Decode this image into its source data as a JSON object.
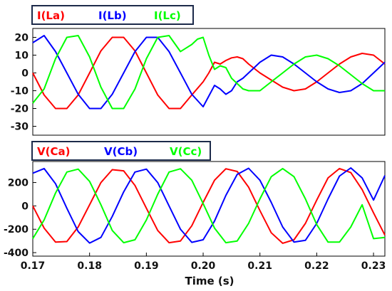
{
  "chart_data": [
    {
      "type": "line",
      "title": "",
      "xlabel": "",
      "ylabel": "",
      "xlim": [
        0.17,
        0.232
      ],
      "ylim": [
        -35,
        25
      ],
      "yticks": [
        20,
        10,
        0,
        -10,
        -20,
        -30
      ],
      "grid": false,
      "legend_position": "top-left",
      "series": [
        {
          "name": "I(La)",
          "color": "#ff0000",
          "x": [
            0.17,
            0.172,
            0.174,
            0.176,
            0.178,
            0.18,
            0.182,
            0.184,
            0.186,
            0.188,
            0.19,
            0.192,
            0.194,
            0.196,
            0.198,
            0.2,
            0.201,
            0.202,
            0.203,
            0.204,
            0.205,
            0.206,
            0.207,
            0.208,
            0.21,
            0.212,
            0.214,
            0.216,
            0.218,
            0.22,
            0.222,
            0.224,
            0.226,
            0.228,
            0.23,
            0.232
          ],
          "y": [
            0,
            -12.4,
            -20,
            -20,
            -12.4,
            0,
            12.4,
            20,
            20,
            12.4,
            0,
            -12.4,
            -20,
            -20,
            -12.4,
            -5,
            0,
            6,
            5,
            7,
            8.5,
            9,
            8,
            5,
            0,
            -4,
            -8,
            -10,
            -9,
            -5,
            0,
            5,
            9,
            11,
            10,
            5
          ]
        },
        {
          "name": "I(Lb)",
          "color": "#0000ff",
          "x": [
            0.17,
            0.172,
            0.174,
            0.176,
            0.178,
            0.18,
            0.182,
            0.184,
            0.186,
            0.188,
            0.19,
            0.192,
            0.194,
            0.196,
            0.198,
            0.2,
            0.201,
            0.202,
            0.203,
            0.204,
            0.205,
            0.206,
            0.207,
            0.208,
            0.21,
            0.212,
            0.214,
            0.216,
            0.218,
            0.22,
            0.222,
            0.224,
            0.226,
            0.228,
            0.23,
            0.232
          ],
          "y": [
            17,
            21,
            12,
            0,
            -12,
            -20,
            -20,
            -12,
            0,
            12,
            20,
            20,
            12,
            0,
            -12,
            -19,
            -13,
            -7,
            -9,
            -12,
            -10,
            -5,
            -3,
            0,
            6,
            10,
            9,
            5,
            0,
            -5,
            -9,
            -11,
            -10,
            -6,
            0,
            6
          ]
        },
        {
          "name": "I(Lc)",
          "color": "#00ff00",
          "x": [
            0.17,
            0.172,
            0.174,
            0.176,
            0.178,
            0.18,
            0.182,
            0.184,
            0.186,
            0.188,
            0.19,
            0.192,
            0.194,
            0.196,
            0.198,
            0.199,
            0.2,
            0.201,
            0.202,
            0.203,
            0.204,
            0.205,
            0.206,
            0.207,
            0.208,
            0.21,
            0.212,
            0.214,
            0.216,
            0.218,
            0.22,
            0.222,
            0.224,
            0.226,
            0.228,
            0.23,
            0.232
          ],
          "y": [
            -17,
            -9,
            8,
            20,
            21,
            9,
            -8,
            -20,
            -20,
            -9,
            8,
            20,
            21,
            12,
            16,
            19,
            20,
            10,
            2,
            4,
            3,
            -3,
            -6,
            -9,
            -10,
            -10,
            -5,
            0,
            5,
            9,
            10,
            8,
            4,
            -1,
            -6,
            -10,
            -10
          ]
        }
      ]
    },
    {
      "type": "line",
      "title": "",
      "xlabel": "Time (s)",
      "ylabel": "",
      "xlim": [
        0.17,
        0.232
      ],
      "ylim": [
        -430,
        380
      ],
      "yticks": [
        200,
        0,
        -200,
        -400
      ],
      "xticks": [
        0.17,
        0.18,
        0.19,
        0.2,
        0.21,
        0.22,
        0.23
      ],
      "grid": false,
      "legend_position": "top-left",
      "series": [
        {
          "name": "V(Ca)",
          "color": "#ff0000",
          "x": [
            0.17,
            0.172,
            0.174,
            0.176,
            0.178,
            0.18,
            0.182,
            0.184,
            0.186,
            0.188,
            0.19,
            0.192,
            0.194,
            0.196,
            0.198,
            0.2,
            0.202,
            0.204,
            0.206,
            0.208,
            0.21,
            0.212,
            0.214,
            0.216,
            0.218,
            0.22,
            0.222,
            0.224,
            0.226,
            0.228,
            0.23,
            0.232
          ],
          "y": [
            0,
            -190,
            -310,
            -305,
            -180,
            10,
            200,
            310,
            300,
            175,
            -20,
            -210,
            -315,
            -300,
            -170,
            30,
            220,
            318,
            295,
            160,
            -40,
            -230,
            -320,
            -290,
            -150,
            50,
            240,
            320,
            285,
            140,
            -60,
            -250
          ]
        },
        {
          "name": "V(Cb)",
          "color": "#0000ff",
          "x": [
            0.17,
            0.172,
            0.174,
            0.176,
            0.178,
            0.18,
            0.182,
            0.184,
            0.186,
            0.188,
            0.19,
            0.192,
            0.194,
            0.196,
            0.198,
            0.2,
            0.202,
            0.204,
            0.206,
            0.208,
            0.21,
            0.212,
            0.214,
            0.216,
            0.218,
            0.22,
            0.222,
            0.224,
            0.226,
            0.228,
            0.23,
            0.232
          ],
          "y": [
            280,
            320,
            190,
            -20,
            -220,
            -318,
            -270,
            -90,
            120,
            290,
            315,
            200,
            0,
            -200,
            -312,
            -290,
            -130,
            90,
            270,
            322,
            220,
            30,
            -180,
            -310,
            -295,
            -150,
            60,
            255,
            325,
            240,
            50,
            260
          ]
        },
        {
          "name": "V(Cc)",
          "color": "#00ff00",
          "x": [
            0.17,
            0.172,
            0.174,
            0.176,
            0.178,
            0.18,
            0.182,
            0.184,
            0.186,
            0.188,
            0.19,
            0.192,
            0.194,
            0.196,
            0.198,
            0.2,
            0.202,
            0.204,
            0.206,
            0.208,
            0.21,
            0.212,
            0.214,
            0.216,
            0.218,
            0.22,
            0.222,
            0.224,
            0.226,
            0.228,
            0.23,
            0.232
          ],
          "y": [
            -280,
            -120,
            110,
            290,
            315,
            210,
            10,
            -210,
            -315,
            -290,
            -120,
            100,
            290,
            318,
            220,
            20,
            -190,
            -315,
            -300,
            -150,
            60,
            250,
            320,
            250,
            60,
            -160,
            -310,
            -310,
            -180,
            10,
            -280,
            -270
          ]
        }
      ]
    }
  ]
}
